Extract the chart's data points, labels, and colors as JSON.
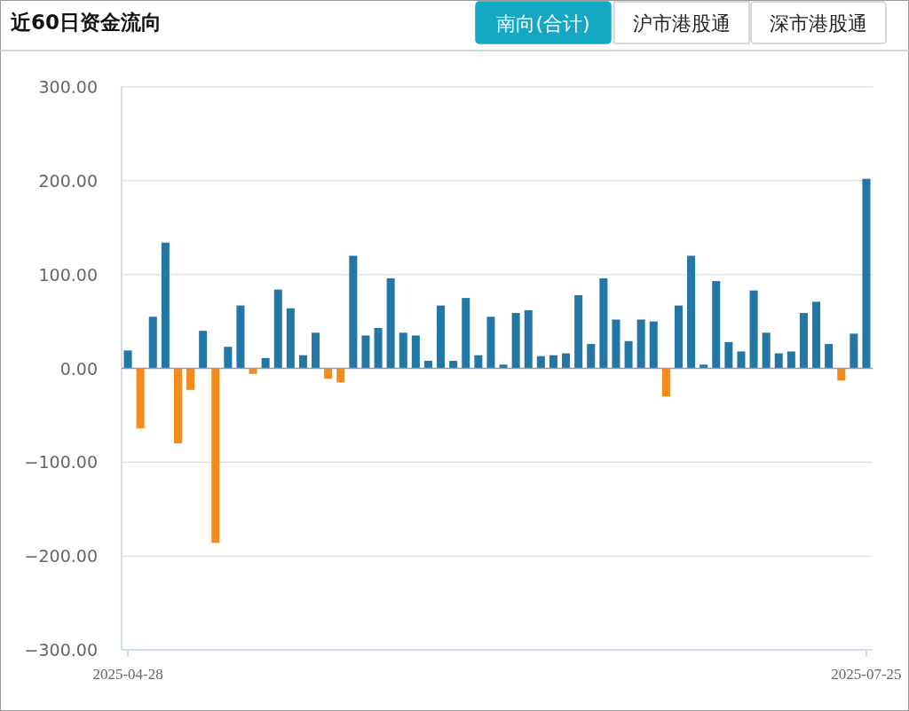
{
  "chart_data": {
    "type": "bar",
    "title": "近60日资金流向",
    "annotations": [
      "南向(合计)",
      "沪市港股通",
      "深市港股通"
    ],
    "categories": [
      "2025-04-28",
      null,
      null,
      null,
      null,
      null,
      null,
      null,
      null,
      null,
      null,
      null,
      null,
      null,
      null,
      null,
      null,
      null,
      null,
      null,
      null,
      null,
      null,
      null,
      null,
      null,
      null,
      null,
      null,
      null,
      null,
      null,
      null,
      null,
      null,
      null,
      null,
      null,
      null,
      null,
      null,
      null,
      null,
      null,
      null,
      null,
      null,
      null,
      null,
      null,
      null,
      null,
      null,
      null,
      null,
      null,
      null,
      null,
      null,
      "2025-07-25"
    ],
    "values": [
      19,
      -64,
      55,
      134,
      -80,
      -23,
      40,
      -186,
      23,
      67,
      -6,
      11,
      84,
      64,
      14,
      38,
      -11,
      -15,
      120,
      35,
      43,
      96,
      38,
      35,
      8,
      67,
      8,
      75,
      14,
      55,
      4,
      59,
      62,
      13,
      14,
      16,
      78,
      26,
      96,
      52,
      29,
      52,
      50,
      -30,
      67,
      120,
      4,
      93,
      28,
      18,
      83,
      38,
      16,
      18,
      59,
      71,
      26,
      -13,
      37,
      202
    ],
    "colors": [
      "#2377a4",
      "#f58a1c",
      "#2377a4",
      "#2377a4",
      "#f58a1c",
      "#f58a1c",
      "#2377a4",
      "#f58a1c",
      "#2377a4",
      "#2377a4",
      "#f58a1c",
      "#2377a4",
      "#2377a4",
      "#2377a4",
      "#2377a4",
      "#2377a4",
      "#f58a1c",
      "#f58a1c",
      "#2377a4",
      "#2377a4",
      "#2377a4",
      "#2377a4",
      "#2377a4",
      "#2377a4",
      "#2377a4",
      "#2377a4",
      "#2377a4",
      "#2377a4",
      "#2377a4",
      "#2377a4",
      "#2377a4",
      "#2377a4",
      "#2377a4",
      "#2377a4",
      "#2377a4",
      "#2377a4",
      "#2377a4",
      "#2377a4",
      "#2377a4",
      "#2377a4",
      "#2377a4",
      "#2377a4",
      "#2377a4",
      "#f58a1c",
      "#2377a4",
      "#2377a4",
      "#2377a4",
      "#2377a4",
      "#2377a4",
      "#2377a4",
      "#2377a4",
      "#2377a4",
      "#2377a4",
      "#2377a4",
      "#2377a4",
      "#2377a4",
      "#2377a4",
      "#f58a1c",
      "#2377a4",
      "#2377a4"
    ],
    "ylim": [
      -300,
      300
    ],
    "yticks": [
      {
        "value": -300,
        "label": "−300.00"
      },
      {
        "value": -200,
        "label": "−200.00"
      },
      {
        "value": -100,
        "label": "−100.00"
      },
      {
        "value": 0,
        "label": "0.00"
      },
      {
        "value": 100,
        "label": "100.00"
      },
      {
        "value": 200,
        "label": "200.00"
      },
      {
        "value": 300,
        "label": "300.00"
      }
    ],
    "grid": "y"
  }
}
